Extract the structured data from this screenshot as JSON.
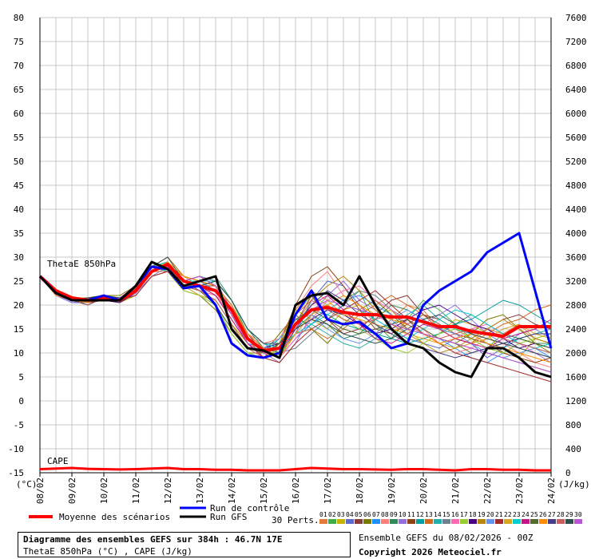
{
  "chart_data": {
    "type": "line",
    "title": "Diagramme des ensembles GEFS sur 384h : 46.7N 17E",
    "subtitle": "ThetaE 850hPa (°C) , CAPE (J/kg)",
    "panel_labels": {
      "thetae": "ThetaE 850hPa",
      "cape": "CAPE"
    },
    "y_left_unit": "(°C)",
    "y_right_unit": "(J/kg)",
    "y_left_ticks": [
      80,
      75,
      70,
      65,
      60,
      55,
      50,
      45,
      40,
      35,
      30,
      25,
      20,
      15,
      10,
      5,
      0,
      -5,
      -10,
      -15
    ],
    "y_right_ticks": [
      7600,
      7200,
      6800,
      6400,
      6000,
      5600,
      5200,
      4800,
      4400,
      4000,
      3600,
      3200,
      2800,
      2400,
      2000,
      1600,
      1200,
      800,
      400,
      0
    ],
    "ylim_left": [
      -15,
      80
    ],
    "ylim_right": [
      0,
      7600
    ],
    "x_range_hours": [
      0,
      384
    ],
    "x_tick_labels": [
      "08/02",
      "09/02",
      "10/02",
      "11/02",
      "12/02",
      "13/02",
      "14/02",
      "15/02",
      "16/02",
      "17/02",
      "18/02",
      "19/02",
      "20/02",
      "21/02",
      "22/02",
      "23/02",
      "24/02"
    ],
    "grid": true,
    "legend": {
      "mean": "Moyenne des scénarios",
      "control": "Run de contrôle",
      "gfs": "Run GFS",
      "perts": "30 Perts.",
      "pert_numbers": [
        "01",
        "02",
        "03",
        "04",
        "05",
        "06",
        "07",
        "08",
        "09",
        "10",
        "11",
        "12",
        "13",
        "14",
        "15",
        "16",
        "17",
        "18",
        "19",
        "20",
        "21",
        "22",
        "23",
        "24",
        "25",
        "26",
        "27",
        "28",
        "29",
        "30"
      ],
      "pert_colors": [
        "#e07b39",
        "#3fae49",
        "#c8b400",
        "#5a6acf",
        "#8b3a3a",
        "#7a7a00",
        "#1e90ff",
        "#ff7f7f",
        "#2e8b57",
        "#9370db",
        "#8b4513",
        "#00a0a0",
        "#d2691e",
        "#20b2aa",
        "#708090",
        "#ff69b4",
        "#9acd32",
        "#4b0082",
        "#b8860b",
        "#6495ed",
        "#a52a2a",
        "#daa520",
        "#00ced1",
        "#c71585",
        "#556b2f",
        "#ff8c00",
        "#483d8b",
        "#cd5c5c",
        "#2f4f4f",
        "#ba55d3"
      ]
    },
    "x_hours": [
      0,
      12,
      24,
      36,
      48,
      60,
      72,
      84,
      96,
      108,
      120,
      132,
      144,
      156,
      168,
      180,
      192,
      204,
      216,
      228,
      240,
      252,
      264,
      276,
      288,
      300,
      312,
      324,
      336,
      348,
      360,
      372,
      384
    ],
    "series": [
      {
        "role": "mean",
        "color": "#ff0000",
        "values": [
          26,
          23,
          21.5,
          21,
          21.5,
          21,
          23,
          27,
          28.5,
          25,
          24,
          23,
          19,
          13,
          10.5,
          11,
          16,
          19,
          19.5,
          18.5,
          18,
          18,
          17.5,
          17.5,
          16.5,
          15.5,
          15.5,
          14.5,
          14,
          13.5,
          15.5,
          15.5,
          15.5
        ]
      },
      {
        "role": "control",
        "color": "#0000ff",
        "values": [
          26,
          22.5,
          21,
          21,
          22,
          21,
          24,
          28,
          27.5,
          23.5,
          24,
          20,
          12,
          9.5,
          9,
          10,
          18,
          23,
          17,
          16,
          16.5,
          14,
          11,
          12,
          20,
          23,
          25,
          27,
          31,
          33,
          35,
          23,
          11
        ]
      },
      {
        "role": "gfs",
        "color": "#000000",
        "values": [
          26,
          22.5,
          21,
          21,
          21,
          21,
          24,
          29,
          27.5,
          24,
          25,
          26,
          15,
          11,
          10.5,
          9,
          20,
          22,
          22.5,
          20,
          26,
          20,
          15,
          12,
          11,
          8,
          6,
          5,
          11,
          11,
          9,
          6,
          5
        ]
      }
    ],
    "perturbations": [
      [
        26,
        23,
        21,
        21.5,
        22,
        21,
        23,
        27,
        28,
        25,
        26,
        24,
        19,
        12,
        10,
        11,
        17,
        19,
        20,
        18,
        17,
        14,
        17,
        20,
        19,
        15,
        13,
        12,
        15,
        14,
        16,
        13,
        14
      ],
      [
        26,
        22.5,
        21.5,
        20.5,
        21,
        21.5,
        23,
        28,
        29,
        24,
        24,
        25,
        21,
        14,
        11,
        9,
        15,
        20,
        23,
        21,
        23,
        16,
        13,
        17,
        21,
        19,
        16,
        13,
        11,
        14,
        13,
        12,
        11
      ],
      [
        26,
        23,
        21,
        21,
        21.5,
        20.5,
        22,
        26,
        27,
        24,
        23,
        21,
        16,
        12,
        9,
        11,
        19,
        17,
        15,
        19,
        20,
        18,
        19,
        15,
        12,
        14,
        17,
        16,
        14,
        10,
        9,
        13,
        12
      ],
      [
        26,
        22,
        20.5,
        20.5,
        21,
        21,
        23,
        28,
        30,
        26,
        25,
        23,
        18,
        13,
        11,
        10,
        14,
        21,
        25,
        24,
        20,
        17,
        15,
        13,
        12,
        11,
        13,
        12,
        9,
        11,
        14,
        15,
        13
      ],
      [
        26,
        23,
        21,
        20,
        21.5,
        21,
        22.5,
        27,
        28,
        25,
        24,
        24,
        20,
        14,
        10,
        12,
        16,
        22,
        17,
        14,
        15,
        18,
        21,
        22,
        18,
        16,
        14,
        13,
        15,
        17,
        18,
        16,
        15
      ],
      [
        26,
        22.5,
        21.5,
        21,
        22,
        22,
        24,
        28,
        27,
        23,
        22,
        19,
        14,
        10,
        10,
        14,
        18,
        15,
        12,
        16,
        19,
        21,
        18,
        15,
        14,
        13,
        12,
        14,
        17,
        18,
        15,
        12,
        10
      ],
      [
        26,
        23,
        21,
        21.5,
        21,
        21,
        23,
        27,
        29,
        25,
        24,
        22,
        17,
        12,
        11,
        9,
        13,
        16,
        19,
        21,
        22,
        20,
        18,
        16,
        14,
        13,
        11,
        9,
        8,
        10,
        12,
        11,
        9
      ],
      [
        26,
        22.5,
        21,
        21,
        21.5,
        21,
        23.5,
        28,
        28.5,
        24,
        23,
        22,
        19,
        14,
        12,
        13,
        19,
        24,
        27,
        22,
        20,
        16,
        14,
        17,
        15,
        12,
        10,
        11,
        13,
        12,
        10,
        8,
        7
      ],
      [
        26,
        23,
        21.5,
        20.5,
        22,
        21.5,
        23,
        27,
        28,
        24,
        25,
        26,
        21,
        15,
        11,
        10,
        15,
        18,
        16,
        13,
        14,
        17,
        20,
        19,
        17,
        15,
        16,
        18,
        16,
        14,
        13,
        12,
        12
      ],
      [
        26,
        22,
        20.5,
        21,
        21,
        21,
        22.5,
        26,
        27,
        25,
        26,
        25,
        19,
        13,
        10,
        8,
        12,
        18,
        22,
        25,
        21,
        19,
        17,
        14,
        16,
        18,
        20,
        17,
        14,
        12,
        11,
        10,
        8
      ],
      [
        26,
        23,
        21,
        21,
        21,
        20.5,
        23,
        28,
        29,
        25,
        24,
        23,
        18,
        12,
        9,
        12,
        20,
        26,
        28,
        24,
        19,
        15,
        14,
        16,
        18,
        17,
        15,
        13,
        12,
        10,
        9,
        8,
        9
      ],
      [
        26,
        22.5,
        21,
        21.5,
        22,
        21,
        24,
        29,
        28,
        24,
        23,
        21,
        16,
        11,
        10,
        11,
        16,
        19,
        18,
        16,
        15,
        14,
        13,
        12,
        13,
        14,
        16,
        17,
        19,
        21,
        20,
        18,
        16
      ],
      [
        26,
        23,
        21.5,
        21,
        21.5,
        21.5,
        23.5,
        27,
        28,
        26,
        25,
        24,
        20,
        13,
        9,
        10,
        14,
        15,
        13,
        15,
        18,
        20,
        22,
        20,
        18,
        15,
        13,
        12,
        14,
        16,
        17,
        19,
        20
      ],
      [
        26,
        22,
        21,
        20.5,
        21,
        21,
        23,
        28,
        27,
        24,
        22,
        20,
        15,
        11,
        10,
        13,
        17,
        16,
        14,
        12,
        11,
        13,
        16,
        18,
        20,
        17,
        15,
        14,
        12,
        11,
        13,
        14,
        15
      ],
      [
        26,
        23,
        21,
        21,
        22,
        21,
        22,
        26,
        28,
        25,
        26,
        25,
        21,
        15,
        12,
        10,
        11,
        14,
        17,
        20,
        23,
        22,
        19,
        17,
        15,
        13,
        12,
        11,
        10,
        9,
        8,
        7,
        6
      ],
      [
        26,
        22.5,
        21.5,
        21,
        21,
        21.5,
        23,
        27,
        29,
        25,
        23,
        22,
        18,
        13,
        10,
        9,
        13,
        17,
        21,
        23,
        24,
        21,
        19,
        16,
        14,
        12,
        13,
        15,
        16,
        14,
        12,
        10,
        9
      ],
      [
        26,
        23,
        21,
        20.5,
        21.5,
        21,
        23.5,
        28,
        28,
        23,
        22,
        20,
        14,
        10,
        9,
        11,
        18,
        22,
        20,
        17,
        15,
        13,
        11,
        10,
        12,
        14,
        15,
        13,
        11,
        10,
        12,
        13,
        14
      ],
      [
        26,
        22.5,
        21,
        21,
        21,
        20.5,
        22.5,
        27,
        27,
        24,
        25,
        24,
        20,
        14,
        11,
        12,
        15,
        17,
        19,
        18,
        16,
        14,
        15,
        17,
        19,
        20,
        18,
        16,
        15,
        13,
        11,
        12,
        11
      ],
      [
        26,
        23,
        21.5,
        21.5,
        22,
        21,
        24,
        28,
        30,
        26,
        24,
        22,
        17,
        12,
        10,
        10,
        16,
        21,
        24,
        26,
        23,
        19,
        16,
        14,
        12,
        10,
        11,
        13,
        15,
        17,
        15,
        13,
        12
      ],
      [
        26,
        22,
        21,
        21,
        21.5,
        21.5,
        23,
        27,
        28,
        24,
        23,
        23,
        19,
        13,
        11,
        13,
        17,
        18,
        15,
        13,
        12,
        14,
        17,
        19,
        17,
        15,
        14,
        12,
        10,
        9,
        10,
        11,
        10
      ],
      [
        26,
        23,
        21,
        20.5,
        21,
        21,
        22,
        26,
        27,
        25,
        26,
        24,
        18,
        12,
        9,
        8,
        12,
        15,
        17,
        19,
        21,
        23,
        20,
        17,
        14,
        12,
        10,
        9,
        8,
        7,
        6,
        5,
        4
      ],
      [
        26,
        22.5,
        21.5,
        21,
        22,
        21,
        23.5,
        29,
        28,
        24,
        22,
        21,
        16,
        11,
        10,
        12,
        19,
        23,
        21,
        18,
        17,
        16,
        15,
        14,
        13,
        12,
        11,
        12,
        13,
        15,
        16,
        14,
        13
      ],
      [
        26,
        23,
        21,
        21,
        21,
        21,
        23,
        28,
        29,
        25,
        25,
        25,
        21,
        15,
        12,
        11,
        14,
        16,
        18,
        20,
        19,
        17,
        15,
        13,
        15,
        17,
        19,
        18,
        16,
        14,
        12,
        11,
        12
      ],
      [
        26,
        22.5,
        21,
        21.5,
        21.5,
        21.5,
        24,
        27,
        28,
        24,
        24,
        22,
        17,
        12,
        9,
        10,
        15,
        20,
        22,
        19,
        16,
        13,
        12,
        14,
        16,
        15,
        13,
        12,
        11,
        13,
        14,
        15,
        17
      ],
      [
        26,
        23,
        21.5,
        21,
        21,
        21,
        23,
        28,
        28,
        25,
        23,
        20,
        15,
        11,
        10,
        12,
        17,
        19,
        17,
        15,
        14,
        15,
        16,
        17,
        15,
        13,
        12,
        10,
        11,
        12,
        13,
        12,
        11
      ],
      [
        26,
        22,
        21,
        20.5,
        22,
        21,
        22.5,
        27,
        29,
        26,
        25,
        24,
        20,
        14,
        11,
        9,
        14,
        18,
        20,
        22,
        20,
        18,
        17,
        16,
        14,
        12,
        13,
        14,
        12,
        11,
        10,
        9,
        8
      ],
      [
        26,
        23,
        21,
        21,
        21.5,
        20.5,
        23,
        28,
        28,
        24,
        24,
        23,
        19,
        13,
        10,
        11,
        16,
        20,
        23,
        21,
        18,
        16,
        14,
        12,
        11,
        10,
        9,
        10,
        11,
        12,
        13,
        14,
        14
      ],
      [
        26,
        22.5,
        21.5,
        21,
        21,
        21,
        23.5,
        27,
        27,
        24,
        23,
        21,
        16,
        11,
        9,
        10,
        18,
        21,
        19,
        17,
        16,
        17,
        18,
        16,
        14,
        13,
        14,
        15,
        14,
        13,
        12,
        11,
        10
      ],
      [
        26,
        23,
        21,
        21.5,
        22,
        21.5,
        23,
        28,
        30,
        25,
        24,
        25,
        21,
        15,
        12,
        12,
        15,
        17,
        16,
        14,
        13,
        12,
        13,
        15,
        17,
        18,
        16,
        14,
        13,
        12,
        11,
        10,
        9
      ],
      [
        26,
        22.5,
        21,
        21,
        21.5,
        21,
        22.5,
        27,
        28,
        25,
        26,
        24,
        18,
        12,
        10,
        11,
        16,
        19,
        21,
        20,
        19,
        18,
        16,
        15,
        14,
        13,
        12,
        11,
        10,
        9,
        8,
        7,
        6
      ]
    ],
    "cape_mean": [
      60,
      70,
      80,
      65,
      60,
      55,
      60,
      70,
      80,
      60,
      60,
      50,
      50,
      40,
      40,
      40,
      60,
      80,
      70,
      60,
      60,
      55,
      50,
      60,
      60,
      50,
      40,
      60,
      60,
      50,
      50,
      40,
      40
    ]
  },
  "legend_text": {
    "mean": "Moyenne des scénarios",
    "control": "Run de contrôle",
    "gfs": "Run GFS",
    "perts": "30 Perts."
  },
  "info": {
    "title": "Diagramme des ensembles GEFS sur 384h : 46.7N 17E",
    "subtitle": "ThetaE 850hPa (°C) , CAPE (J/kg)"
  },
  "credits": {
    "ensemble": "Ensemble GEFS du 08/02/2026 - 00Z",
    "copyright": "Copyright 2026 Meteociel.fr"
  }
}
